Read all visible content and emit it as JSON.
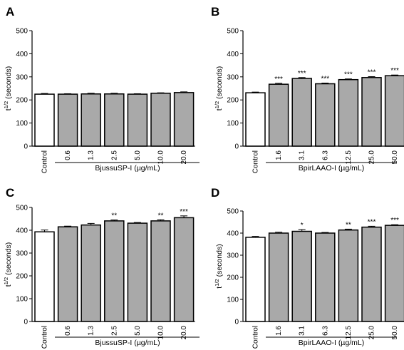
{
  "chart_data": [
    {
      "panel": "A",
      "type": "bar",
      "ylabel": "t",
      "ylabel_sup": "1/2",
      "ylabel_suffix": " (seconds)",
      "xgroup_label": "BjussuSP-I (µg/mL)",
      "ylim": [
        0,
        500
      ],
      "yticks": [
        "0",
        "100",
        "200",
        "300",
        "400",
        "500"
      ],
      "categories": [
        "Control",
        "0.6",
        "1.3",
        "2.5",
        "5.0",
        "10.0",
        "20.0"
      ],
      "values": [
        225,
        225,
        226,
        226,
        225,
        229,
        232
      ],
      "errors": [
        3,
        2,
        3,
        3,
        2,
        2,
        3
      ],
      "significance": [
        "",
        "",
        "",
        "",
        "",
        "",
        ""
      ],
      "colors": [
        "#ffffff",
        "#a9a9a9",
        "#a9a9a9",
        "#a9a9a9",
        "#a9a9a9",
        "#a9a9a9",
        "#a9a9a9"
      ]
    },
    {
      "panel": "B",
      "type": "bar",
      "ylabel": "t",
      "ylabel_sup": "1/2",
      "ylabel_suffix": " (seconds)",
      "xgroup_label": "BpirLAAO-I (µg/mL)",
      "ylim": [
        0,
        500
      ],
      "yticks": [
        "0",
        "100",
        "200",
        "300",
        "400",
        "500"
      ],
      "categories": [
        "Control",
        "1.6",
        "3.1",
        "6.3",
        "12.5",
        "25.0",
        "50.0"
      ],
      "values": [
        231,
        268,
        293,
        270,
        288,
        297,
        305
      ],
      "errors": [
        3,
        4,
        4,
        3,
        3,
        4,
        3
      ],
      "significance": [
        "",
        "***",
        "***",
        "***",
        "***",
        "***",
        "***"
      ],
      "colors": [
        "#ffffff",
        "#a9a9a9",
        "#a9a9a9",
        "#a9a9a9",
        "#a9a9a9",
        "#a9a9a9",
        "#a9a9a9"
      ]
    },
    {
      "panel": "C",
      "type": "bar",
      "ylabel": "t",
      "ylabel_sup": "1/2",
      "ylabel_suffix": " (seconds)",
      "xgroup_label": "BjussuSP-I (µg/mL)",
      "ylim": [
        0,
        500
      ],
      "yticks": [
        "0",
        "100",
        "200",
        "300",
        "400",
        "500"
      ],
      "categories": [
        "Control",
        "0.6",
        "1.3",
        "2.5",
        "5.0",
        "10.0",
        "20.0"
      ],
      "values": [
        393,
        415,
        423,
        441,
        431,
        441,
        455
      ],
      "errors": [
        8,
        3,
        7,
        4,
        3,
        5,
        8
      ],
      "significance": [
        "",
        "",
        "",
        "**",
        "",
        "**",
        "***"
      ],
      "colors": [
        "#ffffff",
        "#a9a9a9",
        "#a9a9a9",
        "#a9a9a9",
        "#a9a9a9",
        "#a9a9a9",
        "#a9a9a9"
      ]
    },
    {
      "panel": "D",
      "type": "bar",
      "ylabel": "t",
      "ylabel_sup": "1/2",
      "ylabel_suffix": " (seconds)",
      "xgroup_label": "BpirLAAO-I (µg/mL)",
      "ylim": [
        0,
        500
      ],
      "yticks": [
        "0",
        "100",
        "200",
        "300",
        "400",
        "500"
      ],
      "categories": [
        "Control",
        "1.6",
        "3.1",
        "6.3",
        "12.5",
        "25.0",
        "50.0"
      ],
      "values": [
        381,
        400,
        408,
        400,
        414,
        427,
        435
      ],
      "errors": [
        4,
        4,
        8,
        3,
        4,
        4,
        3
      ],
      "significance": [
        "",
        "",
        "*",
        "",
        "**",
        "***",
        "***"
      ],
      "colors": [
        "#ffffff",
        "#a9a9a9",
        "#a9a9a9",
        "#a9a9a9",
        "#a9a9a9",
        "#a9a9a9",
        "#a9a9a9"
      ]
    }
  ]
}
